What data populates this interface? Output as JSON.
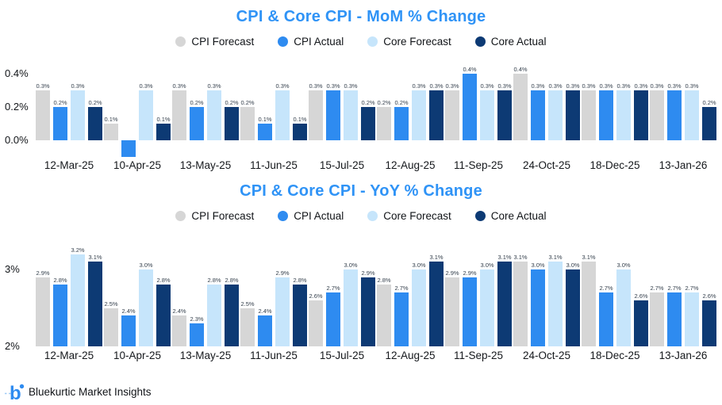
{
  "page": {
    "background": "#ffffff"
  },
  "theme": {
    "title_color": "#2f93f6",
    "axis_text_color": "#15181c",
    "data_label_color": "#35404d"
  },
  "footer": {
    "brand": "Bluekurtic Market Insights"
  },
  "chart_data": [
    {
      "type": "bar",
      "title": "CPI & Core CPI - MoM % Change",
      "legend_position": "top",
      "grid": false,
      "data_labels": true,
      "baseline": 0,
      "ylim": [
        -0.15,
        0.45
      ],
      "y_ticks": [
        {
          "label": "0.4%",
          "value": 0.4
        },
        {
          "label": "0.2%",
          "value": 0.2
        },
        {
          "label": "0.0%",
          "value": 0.0
        }
      ],
      "categories": [
        "12-Mar-25",
        "10-Apr-25",
        "13-May-25",
        "11-Jun-25",
        "15-Jul-25",
        "12-Aug-25",
        "11-Sep-25",
        "24-Oct-25",
        "18-Dec-25",
        "13-Jan-26"
      ],
      "series": [
        {
          "name": "CPI Forecast",
          "color": "#d6d6d6",
          "values": [
            0.3,
            0.1,
            0.3,
            0.2,
            0.3,
            0.2,
            0.3,
            0.4,
            0.3,
            0.3
          ]
        },
        {
          "name": "CPI Actual",
          "color": "#2e8bf0",
          "values": [
            0.2,
            -0.1,
            0.2,
            0.1,
            0.3,
            0.2,
            0.4,
            0.3,
            0.3,
            0.3
          ]
        },
        {
          "name": "Core Forecast",
          "color": "#c6e5fb",
          "values": [
            0.3,
            0.3,
            0.3,
            0.3,
            0.3,
            0.3,
            0.3,
            0.3,
            0.3,
            0.3
          ]
        },
        {
          "name": "Core Actual",
          "color": "#0d3a74",
          "values": [
            0.2,
            0.1,
            0.2,
            0.1,
            0.2,
            0.3,
            0.3,
            0.3,
            0.3,
            0.2
          ]
        }
      ]
    },
    {
      "type": "bar",
      "title": "CPI & Core CPI - YoY % Change",
      "legend_position": "top",
      "grid": false,
      "data_labels": true,
      "baseline": 2,
      "ylim": [
        2,
        3.3
      ],
      "y_ticks": [
        {
          "label": "3%",
          "value": 3
        },
        {
          "label": "2%",
          "value": 2
        }
      ],
      "categories": [
        "12-Mar-25",
        "10-Apr-25",
        "13-May-25",
        "11-Jun-25",
        "15-Jul-25",
        "12-Aug-25",
        "11-Sep-25",
        "24-Oct-25",
        "18-Dec-25",
        "13-Jan-26"
      ],
      "series": [
        {
          "name": "CPI Forecast",
          "color": "#d6d6d6",
          "values": [
            2.9,
            2.5,
            2.4,
            2.5,
            2.6,
            2.8,
            2.9,
            3.1,
            3.1,
            2.7
          ]
        },
        {
          "name": "CPI Actual",
          "color": "#2e8bf0",
          "values": [
            2.8,
            2.4,
            2.3,
            2.4,
            2.7,
            2.7,
            2.9,
            3.0,
            2.7,
            2.7
          ]
        },
        {
          "name": "Core Forecast",
          "color": "#c6e5fb",
          "values": [
            3.2,
            3.0,
            2.8,
            2.9,
            3.0,
            3.0,
            3.0,
            3.1,
            3.0,
            2.7
          ]
        },
        {
          "name": "Core Actual",
          "color": "#0d3a74",
          "values": [
            3.1,
            2.8,
            2.8,
            2.8,
            2.9,
            3.1,
            3.1,
            3.0,
            2.6,
            2.6
          ]
        }
      ]
    }
  ]
}
